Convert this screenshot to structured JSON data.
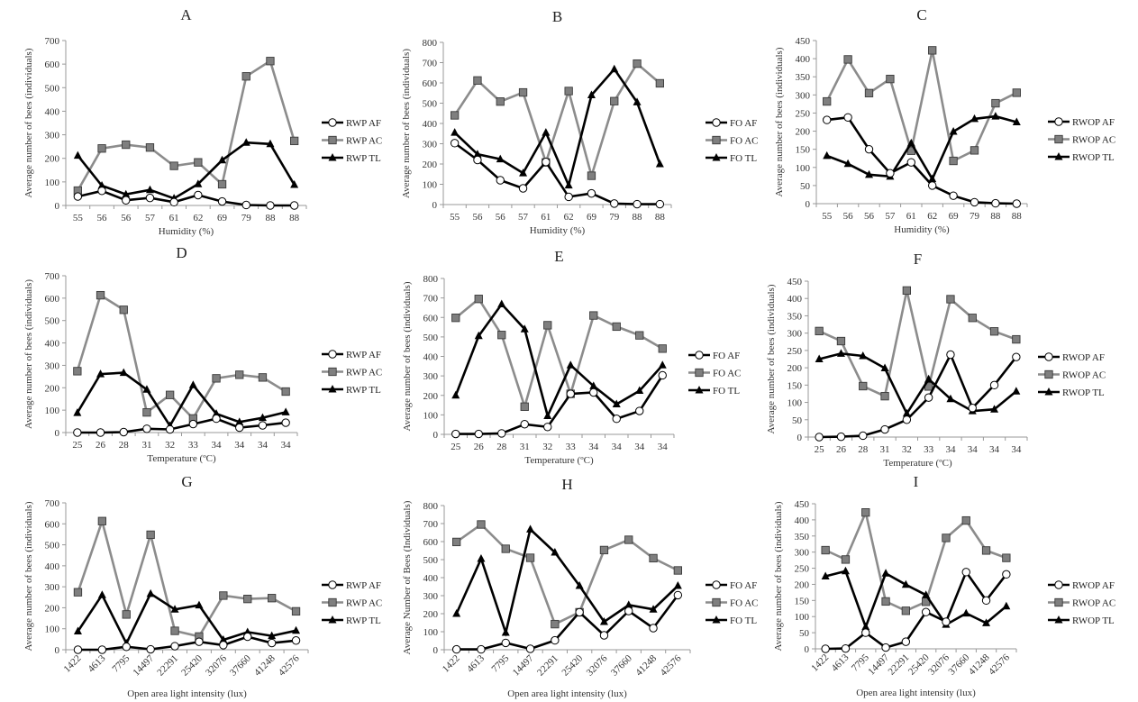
{
  "figure_title": "",
  "colors": {
    "af": "#000000",
    "ac": "#8c8c8c",
    "ac_marker": "#7f7f7f",
    "tl": "#000000",
    "axis": "#999999"
  },
  "chart_data": [
    {
      "id": "A",
      "type": "line",
      "title": "A",
      "xlabel": "Humidity (%)",
      "ylabel": "Average number of bees (individuals)",
      "categories": [
        "55",
        "56",
        "56",
        "57",
        "61",
        "62",
        "69",
        "79",
        "88",
        "88"
      ],
      "ylim": [
        0,
        700
      ],
      "ystep": 100,
      "rotate_x": false,
      "grid": false,
      "legend": "right",
      "series": [
        {
          "name": "RWP AF",
          "style": "af",
          "values": [
            38,
            62,
            22,
            32,
            14,
            44,
            17,
            2,
            0,
            0
          ]
        },
        {
          "name": "RWP AC",
          "style": "ac",
          "values": [
            63,
            242,
            258,
            246,
            168,
            183,
            90,
            548,
            613,
            274
          ]
        },
        {
          "name": "RWP TL",
          "style": "tl",
          "values": [
            212,
            84,
            47,
            66,
            30,
            91,
            192,
            267,
            261,
            88
          ]
        }
      ]
    },
    {
      "id": "B",
      "type": "line",
      "title": "B",
      "xlabel": "Humidity (%)",
      "ylabel": "Average number of bees (individuals)",
      "categories": [
        "55",
        "56",
        "56",
        "57",
        "61",
        "62",
        "69",
        "79",
        "88",
        "88"
      ],
      "ylim": [
        0,
        800
      ],
      "ystep": 100,
      "rotate_x": false,
      "grid": false,
      "legend": "right",
      "series": [
        {
          "name": "FO AF",
          "style": "af",
          "values": [
            303,
            220,
            120,
            80,
            210,
            38,
            55,
            5,
            2,
            2
          ]
        },
        {
          "name": "FO AC",
          "style": "ac",
          "values": [
            440,
            612,
            508,
            553,
            208,
            560,
            142,
            510,
            695,
            598
          ]
        },
        {
          "name": "FO TL",
          "style": "tl",
          "values": [
            355,
            248,
            224,
            155,
            355,
            95,
            540,
            668,
            505,
            200
          ]
        }
      ]
    },
    {
      "id": "C",
      "type": "line",
      "title": "C",
      "xlabel": "Humidity (%)",
      "ylabel": "Average number of bees (individuals)",
      "categories": [
        "55",
        "56",
        "56",
        "57",
        "61",
        "62",
        "69",
        "79",
        "88",
        "88"
      ],
      "ylim": [
        0,
        450
      ],
      "ystep": 50,
      "rotate_x": false,
      "grid": false,
      "legend": "right",
      "series": [
        {
          "name": "RWOP AF",
          "style": "af",
          "values": [
            231,
            238,
            150,
            84,
            114,
            50,
            22,
            4,
            1,
            0
          ]
        },
        {
          "name": "RWOP AC",
          "style": "ac",
          "values": [
            282,
            398,
            305,
            344,
            146,
            423,
            118,
            147,
            277,
            306
          ]
        },
        {
          "name": "RWOP TL",
          "style": "tl",
          "values": [
            132,
            110,
            80,
            75,
            167,
            68,
            199,
            234,
            241,
            225
          ]
        }
      ]
    },
    {
      "id": "D",
      "type": "line",
      "title": "D",
      "xlabel": "Temperature (ºC)",
      "ylabel": "Average number of bees (individuals)",
      "categories": [
        "25",
        "26",
        "28",
        "31",
        "32",
        "33",
        "34",
        "34",
        "34",
        "34"
      ],
      "ylim": [
        0,
        700
      ],
      "ystep": 100,
      "rotate_x": false,
      "grid": false,
      "legend": "right",
      "series": [
        {
          "name": "RWP AF",
          "style": "af",
          "values": [
            0,
            0,
            2,
            17,
            14,
            38,
            62,
            22,
            32,
            44
          ]
        },
        {
          "name": "RWP AC",
          "style": "ac",
          "values": [
            274,
            613,
            548,
            90,
            168,
            63,
            242,
            258,
            246,
            183
          ]
        },
        {
          "name": "RWP TL",
          "style": "tl",
          "values": [
            88,
            261,
            267,
            192,
            30,
            212,
            84,
            47,
            66,
            91
          ]
        }
      ]
    },
    {
      "id": "E",
      "type": "line",
      "title": "E",
      "xlabel": "Temperature (ºC)",
      "ylabel": "Average number of bees (individuals)",
      "categories": [
        "25",
        "26",
        "28",
        "31",
        "32",
        "33",
        "34",
        "34",
        "34",
        "34"
      ],
      "ylim": [
        0,
        800
      ],
      "ystep": 100,
      "rotate_x": false,
      "grid": false,
      "legend": "right",
      "series": [
        {
          "name": "FO AF",
          "style": "af",
          "values": [
            2,
            2,
            5,
            52,
            38,
            208,
            215,
            80,
            120,
            303
          ]
        },
        {
          "name": "FO AC",
          "style": "ac",
          "values": [
            598,
            695,
            510,
            142,
            560,
            208,
            610,
            553,
            508,
            440
          ]
        },
        {
          "name": "FO TL",
          "style": "tl",
          "values": [
            200,
            505,
            668,
            540,
            95,
            355,
            248,
            155,
            224,
            355
          ]
        }
      ]
    },
    {
      "id": "F",
      "type": "line",
      "title": "F",
      "xlabel": "Temperature (ºC)",
      "ylabel": "Average number of bees (individuals)",
      "categories": [
        "25",
        "26",
        "28",
        "31",
        "32",
        "33",
        "34",
        "34",
        "34",
        "34"
      ],
      "ylim": [
        0,
        450
      ],
      "ystep": 50,
      "rotate_x": false,
      "grid": false,
      "legend": "right",
      "series": [
        {
          "name": "RWOP AF",
          "style": "af",
          "values": [
            0,
            1,
            4,
            22,
            50,
            114,
            238,
            84,
            150,
            231
          ]
        },
        {
          "name": "RWOP AC",
          "style": "ac",
          "values": [
            306,
            277,
            147,
            118,
            423,
            146,
            398,
            344,
            305,
            282
          ]
        },
        {
          "name": "RWOP TL",
          "style": "tl",
          "values": [
            225,
            241,
            234,
            199,
            68,
            167,
            110,
            75,
            80,
            132
          ]
        }
      ]
    },
    {
      "id": "G",
      "type": "line",
      "title": "G",
      "xlabel": "Open area light intensity (lux)",
      "ylabel": "Average number of bees (individuals)",
      "categories": [
        "1422",
        "4613",
        "7795",
        "14497",
        "22291",
        "25420",
        "32076",
        "37660",
        "41248",
        "42576"
      ],
      "ylim": [
        0,
        700
      ],
      "ystep": 100,
      "rotate_x": true,
      "grid": false,
      "legend": "right",
      "series": [
        {
          "name": "RWP AF",
          "style": "af",
          "values": [
            0,
            0,
            14,
            2,
            17,
            38,
            22,
            62,
            32,
            44
          ]
        },
        {
          "name": "RWP AC",
          "style": "ac",
          "values": [
            274,
            613,
            168,
            548,
            90,
            63,
            258,
            242,
            246,
            183
          ]
        },
        {
          "name": "RWP TL",
          "style": "tl",
          "values": [
            88,
            261,
            30,
            267,
            192,
            212,
            47,
            84,
            66,
            91
          ]
        }
      ]
    },
    {
      "id": "H",
      "type": "line",
      "title": "H",
      "xlabel": "Open area light intensity (lux)",
      "ylabel": "Average Number of Bees (Individuals)",
      "categories": [
        "1422",
        "4613",
        "7795",
        "14497",
        "22291",
        "25420",
        "32076",
        "37660",
        "41248",
        "42576"
      ],
      "ylim": [
        0,
        800
      ],
      "ystep": 100,
      "rotate_x": true,
      "grid": false,
      "legend": "right",
      "series": [
        {
          "name": "FO AF",
          "style": "af",
          "values": [
            2,
            2,
            38,
            5,
            52,
            208,
            80,
            215,
            120,
            303
          ]
        },
        {
          "name": "FO AC",
          "style": "ac",
          "values": [
            598,
            695,
            560,
            510,
            142,
            208,
            553,
            610,
            508,
            440
          ]
        },
        {
          "name": "FO TL",
          "style": "tl",
          "values": [
            200,
            505,
            95,
            668,
            540,
            355,
            155,
            248,
            224,
            355
          ]
        }
      ]
    },
    {
      "id": "I",
      "type": "line",
      "title": "I",
      "xlabel": "Open area light intensity (lux)",
      "ylabel": "Average number of bees (individuals)",
      "categories": [
        "1422",
        "4613",
        "7795",
        "14497",
        "22291",
        "25420",
        "32076",
        "37660",
        "41248",
        "42576"
      ],
      "ylim": [
        0,
        450
      ],
      "ystep": 50,
      "rotate_x": true,
      "grid": false,
      "legend": "right",
      "series": [
        {
          "name": "RWOP AF",
          "style": "af",
          "values": [
            0,
            1,
            50,
            4,
            22,
            114,
            84,
            238,
            150,
            231
          ]
        },
        {
          "name": "RWOP AC",
          "style": "ac",
          "values": [
            306,
            277,
            423,
            147,
            118,
            146,
            344,
            398,
            305,
            282
          ]
        },
        {
          "name": "RWOP TL",
          "style": "tl",
          "values": [
            225,
            241,
            68,
            234,
            199,
            167,
            75,
            110,
            80,
            132
          ]
        }
      ]
    }
  ]
}
